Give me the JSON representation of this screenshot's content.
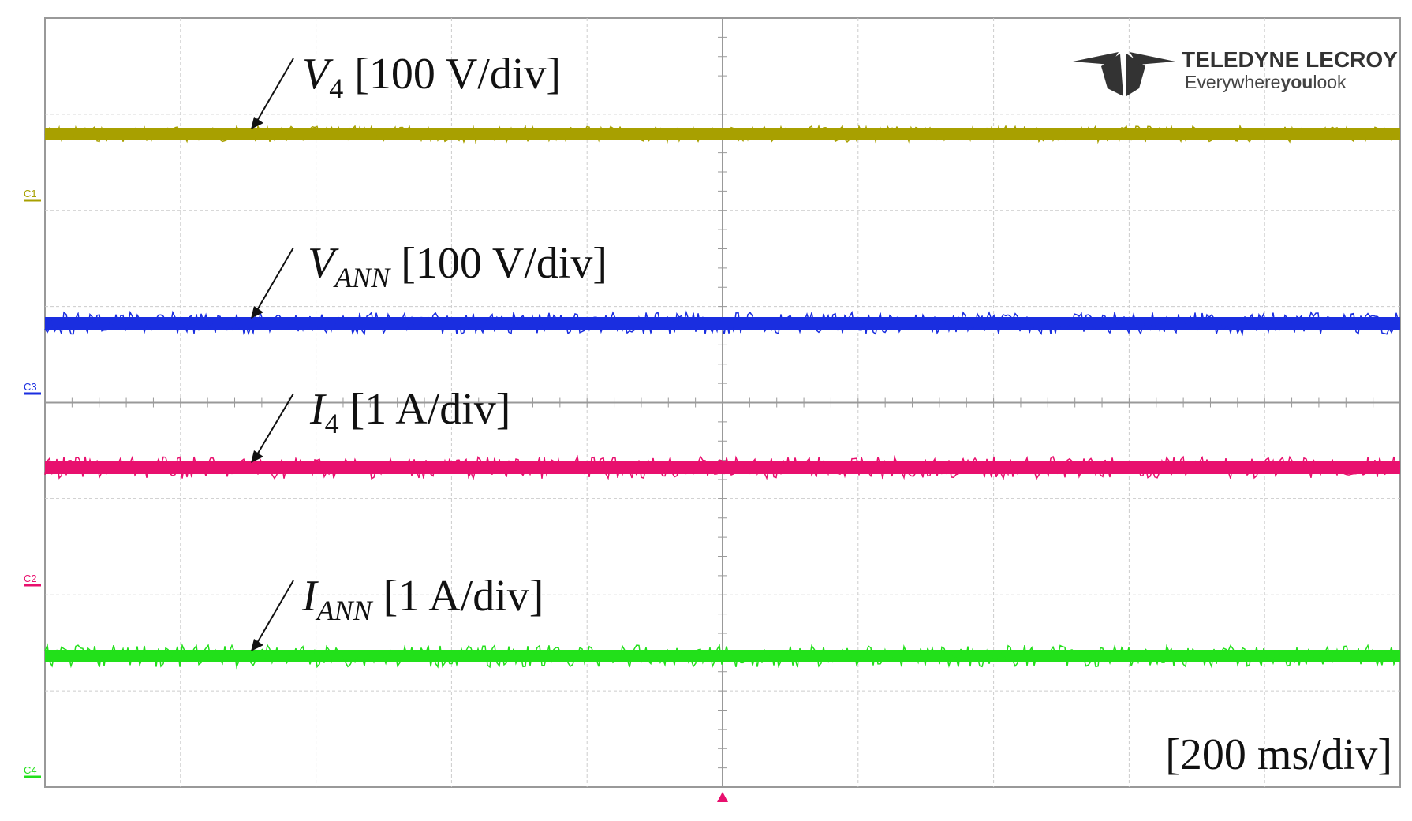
{
  "traces": [
    {
      "channel": "C1",
      "symbol": "V",
      "subscript": "4",
      "scale": "[100 V/div]",
      "color": "#a8a000"
    },
    {
      "channel": "C3",
      "symbol": "V",
      "subscript": "ANN",
      "scale": "[100 V/div]",
      "color": "#1a2ee0"
    },
    {
      "channel": "C2",
      "symbol": "I",
      "subscript": "4",
      "scale": "[1 A/div]",
      "color": "#e8106e"
    },
    {
      "channel": "C4",
      "symbol": "I",
      "subscript": "ANN",
      "scale": "[1 A/div]",
      "color": "#22e01a"
    }
  ],
  "logo": {
    "brand": "TELEDYNE LECROY",
    "tagline_start": "Everywhere",
    "tagline_bold": "you",
    "tagline_end": "look"
  },
  "timebase": "[200 ms/div]"
}
